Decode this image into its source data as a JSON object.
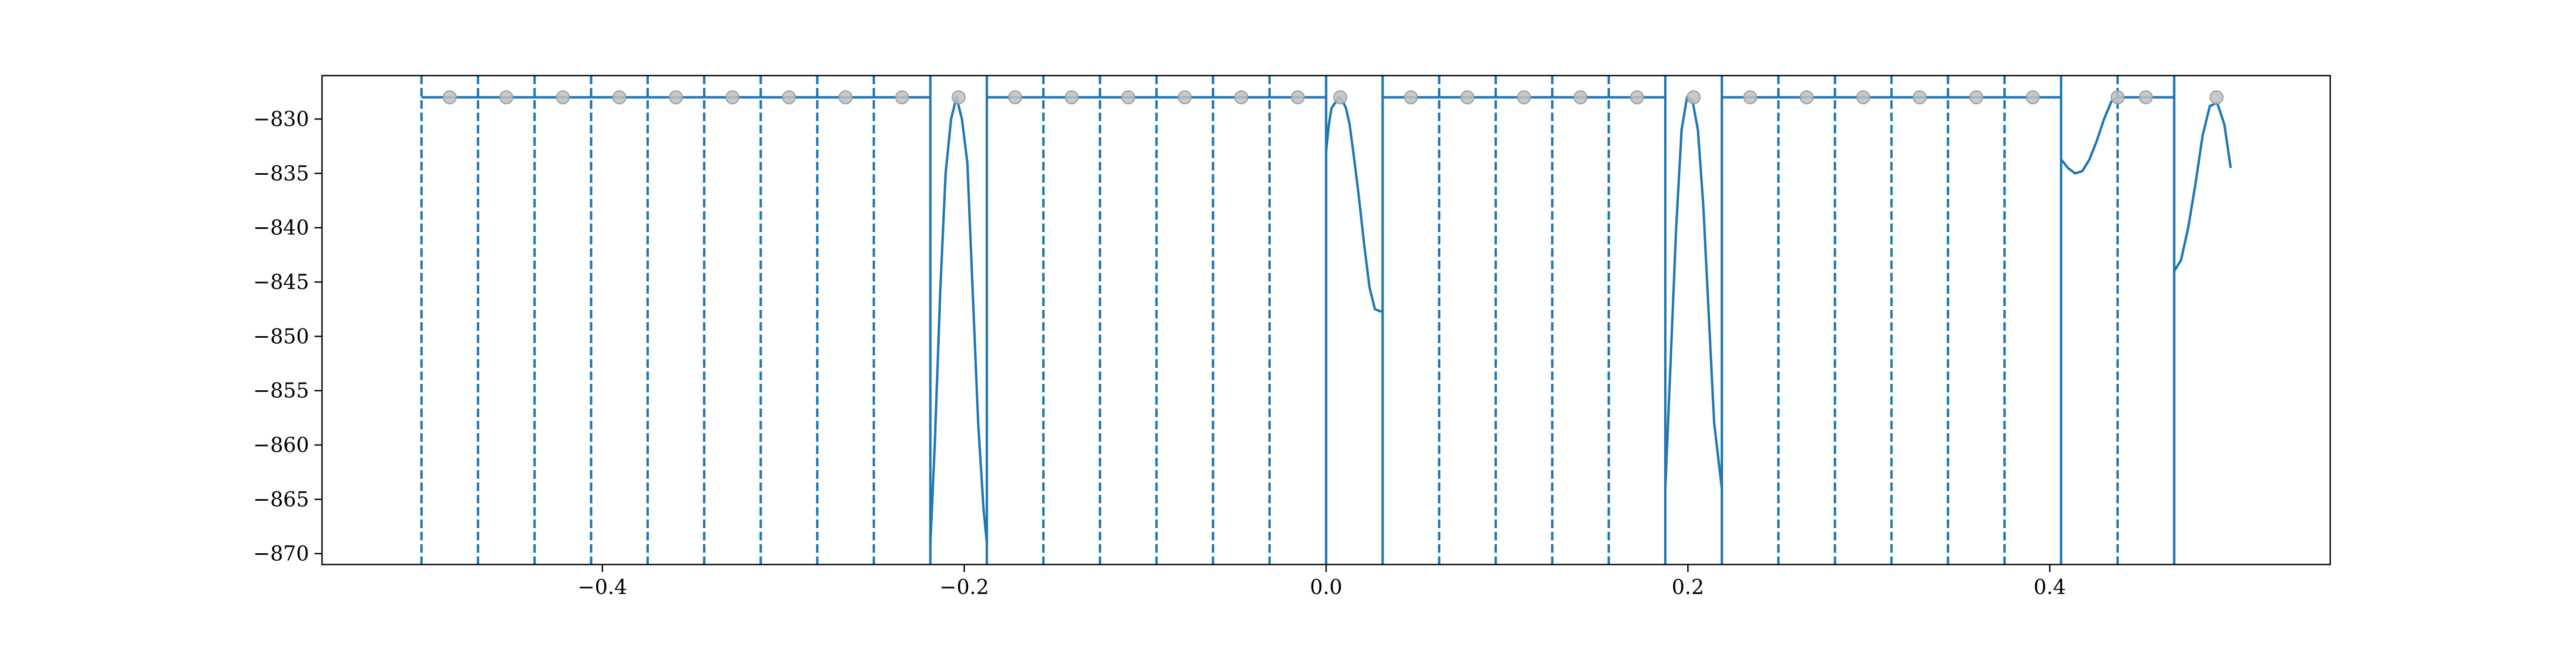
{
  "chart_data": {
    "type": "line",
    "title": "",
    "xlabel": "",
    "ylabel": "",
    "xlim": [
      -0.555,
      0.555
    ],
    "ylim": [
      -871.0,
      -826.0
    ],
    "grid": false,
    "x_ticks": [
      -0.4,
      -0.2,
      0.0,
      0.2,
      0.4
    ],
    "x_tick_labels": [
      "−0.4",
      "−0.2",
      "0.0",
      "0.2",
      "0.4"
    ],
    "y_ticks": [
      -830,
      -835,
      -840,
      -845,
      -850,
      -855,
      -860,
      -865,
      -870
    ],
    "y_tick_labels": [
      "−830",
      "−835",
      "−840",
      "−845",
      "−850",
      "−855",
      "−860",
      "−865",
      "−870"
    ],
    "line_color": "#1f77b4",
    "marker_color": "#bfbfbf",
    "boundaries": [
      -0.5,
      -0.46875,
      -0.4375,
      -0.40625,
      -0.375,
      -0.34375,
      -0.3125,
      -0.28125,
      -0.25,
      -0.21875,
      -0.1875,
      -0.15625,
      -0.125,
      -0.09375,
      -0.0625,
      -0.03125,
      0.0,
      0.03125,
      0.0625,
      0.09375,
      0.125,
      0.15625,
      0.1875,
      0.21875,
      0.25,
      0.28125,
      0.3125,
      0.34375,
      0.375,
      0.40625,
      0.4375,
      0.46875
    ],
    "boundary_style": [
      "dashed",
      "dashed",
      "dashed",
      "dashed",
      "dashed",
      "dashed",
      "dashed",
      "dashed",
      "dashed",
      "solid",
      "solid",
      "dashed",
      "dashed",
      "dashed",
      "dashed",
      "dashed",
      "solid",
      "solid",
      "dashed",
      "dashed",
      "dashed",
      "dashed",
      "solid",
      "solid",
      "dashed",
      "dashed",
      "dashed",
      "dashed",
      "dashed",
      "solid",
      "dashed",
      "solid"
    ],
    "series": [
      {
        "x": [
          -0.5,
          -0.21875
        ],
        "y": [
          -828.0,
          -828.0
        ]
      },
      {
        "x": [
          -0.21875,
          -0.2163,
          -0.2133,
          -0.2103,
          -0.2073,
          -0.2043,
          -0.2013,
          -0.1983,
          -0.1953,
          -0.1923,
          -0.1893,
          -0.1875
        ],
        "y": [
          -869.0,
          -860.0,
          -846.0,
          -835.0,
          -830.0,
          -828.0,
          -830.0,
          -834.0,
          -846.0,
          -858.0,
          -866.0,
          -869.0
        ]
      },
      {
        "x": [
          -0.1875,
          0.0
        ],
        "y": [
          -828.0,
          -828.0
        ]
      },
      {
        "x": [
          0.0,
          0.0015,
          0.003,
          0.005,
          0.007,
          0.009,
          0.011,
          0.013,
          0.015,
          0.018,
          0.021,
          0.024,
          0.027,
          0.03,
          0.03125
        ],
        "y": [
          -833.0,
          -830.5,
          -829.0,
          -828.5,
          -828.0,
          -828.3,
          -829.0,
          -830.5,
          -833.0,
          -837.0,
          -841.5,
          -845.5,
          -847.5,
          -847.7,
          -847.7
        ]
      },
      {
        "x": [
          0.03125,
          0.1875
        ],
        "y": [
          -828.0,
          -828.0
        ]
      },
      {
        "x": [
          0.1875,
          0.1905,
          0.1935,
          0.1965,
          0.1995,
          0.2025,
          0.2055,
          0.2085,
          0.2115,
          0.2145,
          0.21875
        ],
        "y": [
          -864.0,
          -852.0,
          -840.0,
          -831.0,
          -828.0,
          -828.3,
          -831.0,
          -838.0,
          -848.0,
          -858.0,
          -864.0
        ]
      },
      {
        "x": [
          0.21875,
          0.40625
        ],
        "y": [
          -828.0,
          -828.0
        ]
      },
      {
        "x": [
          0.40625,
          0.41,
          0.414,
          0.418,
          0.422,
          0.426,
          0.43,
          0.434,
          0.4375
        ],
        "y": [
          -833.7,
          -834.5,
          -835.0,
          -834.8,
          -833.7,
          -832.0,
          -830.0,
          -828.4,
          -828.0
        ]
      },
      {
        "x": [
          0.4375,
          0.46875
        ],
        "y": [
          -828.0,
          -828.0
        ]
      },
      {
        "x": [
          0.46875,
          0.4725,
          0.4765,
          0.4805,
          0.4845,
          0.4885,
          0.4925,
          0.4965,
          0.5
        ],
        "y": [
          -844.0,
          -843.0,
          -840.0,
          -836.0,
          -831.5,
          -828.8,
          -828.5,
          -830.5,
          -834.5
        ]
      }
    ],
    "markers": {
      "x": [
        -0.484375,
        -0.453125,
        -0.421875,
        -0.390625,
        -0.359375,
        -0.328125,
        -0.296875,
        -0.265625,
        -0.234375,
        -0.203125,
        -0.171875,
        -0.140625,
        -0.109375,
        -0.078125,
        -0.046875,
        -0.015625,
        0.0078125,
        0.046875,
        0.078125,
        0.109375,
        0.140625,
        0.171875,
        0.203125,
        0.234375,
        0.265625,
        0.296875,
        0.328125,
        0.359375,
        0.390625,
        0.4375,
        0.453125,
        0.4921875
      ],
      "y": [
        -828,
        -828,
        -828,
        -828,
        -828,
        -828,
        -828,
        -828,
        -828,
        -828,
        -828,
        -828,
        -828,
        -828,
        -828,
        -828,
        -828,
        -828,
        -828,
        -828,
        -828,
        -828,
        -828,
        -828,
        -828,
        -828,
        -828,
        -828,
        -828,
        -828,
        -828,
        -828
      ]
    }
  }
}
